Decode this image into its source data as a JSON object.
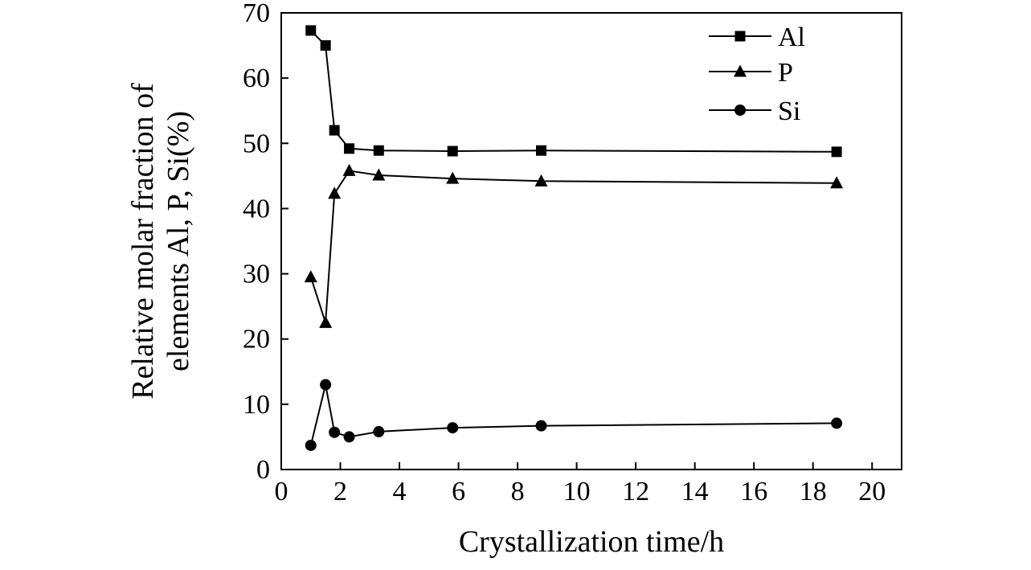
{
  "chart_data": {
    "type": "line",
    "title": "",
    "xlabel": "Crystallization time/h",
    "ylabel_lines": [
      "Relative molar fraction of",
      "elements Al, P, Si(%)"
    ],
    "xlim": [
      0,
      21
    ],
    "ylim": [
      0,
      70
    ],
    "xticks": [
      0,
      2,
      4,
      6,
      8,
      10,
      12,
      14,
      16,
      18,
      20
    ],
    "yticks": [
      0,
      10,
      20,
      30,
      40,
      50,
      60,
      70
    ],
    "grid": false,
    "legend_position": "top-right",
    "series": [
      {
        "name": "Al",
        "marker": "square",
        "x": [
          1.0,
          1.5,
          1.8,
          2.3,
          3.3,
          5.8,
          8.8,
          18.8
        ],
        "y": [
          67.3,
          65.0,
          52.0,
          49.2,
          48.9,
          48.8,
          48.9,
          48.7
        ]
      },
      {
        "name": "P",
        "marker": "triangle",
        "x": [
          1.0,
          1.5,
          1.8,
          2.3,
          3.3,
          5.8,
          8.8,
          18.8
        ],
        "y": [
          29.5,
          22.5,
          42.3,
          45.8,
          45.1,
          44.6,
          44.2,
          43.9
        ]
      },
      {
        "name": "Si",
        "marker": "circle",
        "x": [
          1.0,
          1.5,
          1.8,
          2.3,
          3.3,
          5.8,
          8.8,
          18.8
        ],
        "y": [
          3.7,
          13.0,
          5.7,
          5.0,
          5.8,
          6.4,
          6.7,
          7.1
        ]
      }
    ],
    "colors": {
      "line": "#000000",
      "marker": "#000000",
      "background": "#ffffff"
    }
  }
}
